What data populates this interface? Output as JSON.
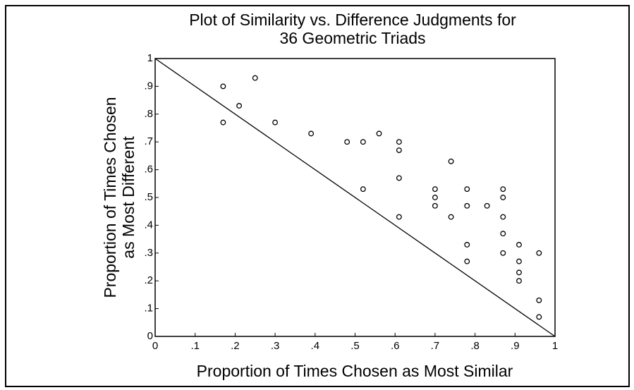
{
  "chart_data": {
    "type": "scatter",
    "title": [
      "Plot of Similarity vs. Difference Judgments for",
      "36 Geometric Triads"
    ],
    "x_label": "Proportion of Times Chosen as Most Similar",
    "y_label": [
      "Proportion of Times Chosen",
      "as Most Different"
    ],
    "xlim": [
      0,
      1
    ],
    "ylim": [
      0,
      1
    ],
    "xticks": [
      0,
      {
        "value": 0.1,
        "label": ".1"
      },
      {
        "value": 0.2,
        "label": ".2"
      },
      {
        "value": 0.3,
        "label": ".3"
      },
      {
        "value": 0.4,
        "label": ".4"
      },
      {
        "value": 0.5,
        "label": ".5"
      },
      {
        "value": 0.6,
        "label": ".6"
      },
      {
        "value": 0.7,
        "label": ".7"
      },
      {
        "value": 0.8,
        "label": ".8"
      },
      {
        "value": 0.9,
        "label": ".9"
      },
      1
    ],
    "yticks": [
      0,
      {
        "value": 0.1,
        "label": ".1"
      },
      {
        "value": 0.2,
        "label": ".2"
      },
      {
        "value": 0.3,
        "label": ".3"
      },
      {
        "value": 0.4,
        "label": ".4"
      },
      {
        "value": 0.5,
        "label": ".5"
      },
      {
        "value": 0.6,
        "label": ".6"
      },
      {
        "value": 0.7,
        "label": ".7"
      },
      {
        "value": 0.8,
        "label": ".8"
      },
      {
        "value": 0.9,
        "label": ".9"
      },
      1
    ],
    "x": [
      0.17,
      0.17,
      0.21,
      0.25,
      0.3,
      0.39,
      0.48,
      0.52,
      0.52,
      0.56,
      0.61,
      0.61,
      0.61,
      0.61,
      0.7,
      0.7,
      0.7,
      0.74,
      0.74,
      0.78,
      0.78,
      0.78,
      0.78,
      0.83,
      0.87,
      0.87,
      0.87,
      0.87,
      0.87,
      0.91,
      0.91,
      0.91,
      0.91,
      0.96,
      0.96,
      0.96
    ],
    "y": [
      0.9,
      0.77,
      0.83,
      0.93,
      0.77,
      0.73,
      0.7,
      0.7,
      0.53,
      0.73,
      0.7,
      0.67,
      0.57,
      0.43,
      0.53,
      0.5,
      0.47,
      0.63,
      0.43,
      0.53,
      0.47,
      0.33,
      0.27,
      0.47,
      0.53,
      0.5,
      0.43,
      0.37,
      0.3,
      0.33,
      0.27,
      0.23,
      0.2,
      0.3,
      0.13,
      0.07
    ],
    "color": "#000000"
  }
}
